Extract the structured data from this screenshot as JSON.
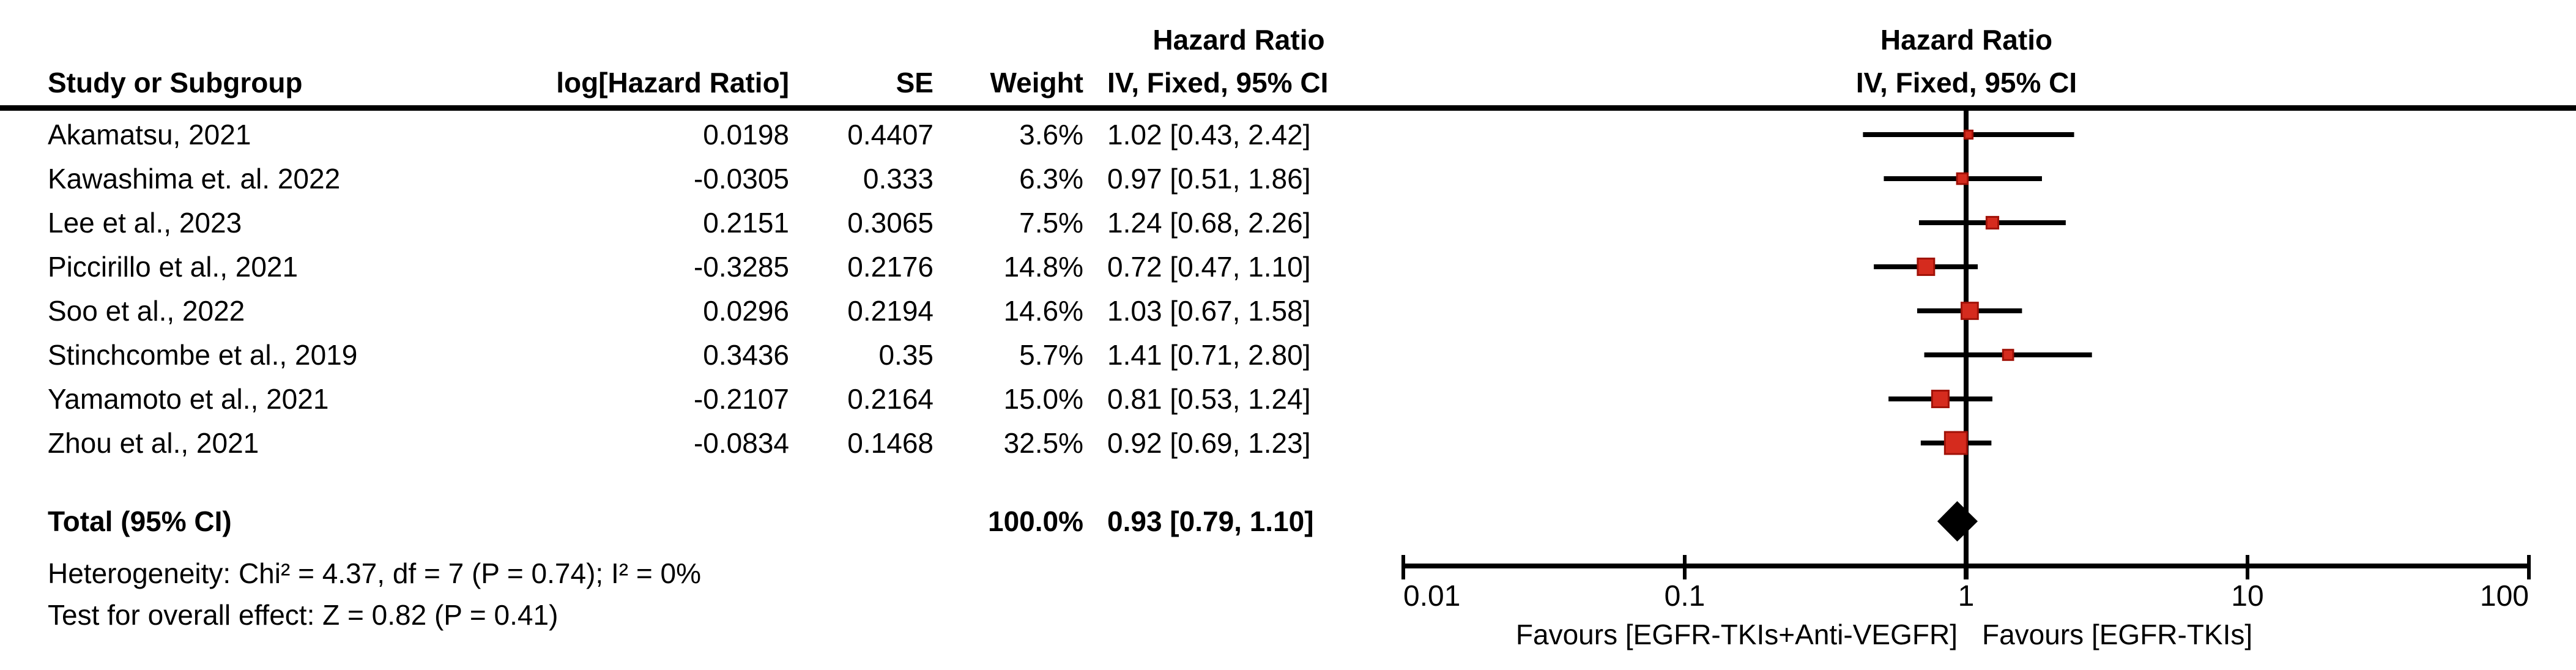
{
  "table": {
    "header_top": {
      "hazard_ratio": "Hazard Ratio"
    },
    "columns": {
      "study": "Study or Subgroup",
      "log_hr": "log[Hazard Ratio]",
      "se": "SE",
      "weight": "Weight",
      "ci": "IV, Fixed, 95% CI"
    },
    "rows": [
      {
        "study": "Akamatsu, 2021",
        "log_hr": "0.0198",
        "se": "0.4407",
        "weight": "3.6%",
        "ci": "1.02 [0.43, 2.42]"
      },
      {
        "study": "Kawashima et. al. 2022",
        "log_hr": "-0.0305",
        "se": "0.333",
        "weight": "6.3%",
        "ci": "0.97 [0.51, 1.86]"
      },
      {
        "study": "Lee et al., 2023",
        "log_hr": "0.2151",
        "se": "0.3065",
        "weight": "7.5%",
        "ci": "1.24 [0.68, 2.26]"
      },
      {
        "study": "Piccirillo et al., 2021",
        "log_hr": "-0.3285",
        "se": "0.2176",
        "weight": "14.8%",
        "ci": "0.72 [0.47, 1.10]"
      },
      {
        "study": "Soo et al., 2022",
        "log_hr": "0.0296",
        "se": "0.2194",
        "weight": "14.6%",
        "ci": "1.03 [0.67, 1.58]"
      },
      {
        "study": "Stinchcombe et al., 2019",
        "log_hr": "0.3436",
        "se": "0.35",
        "weight": "5.7%",
        "ci": "1.41 [0.71, 2.80]"
      },
      {
        "study": "Yamamoto et al., 2021",
        "log_hr": "-0.2107",
        "se": "0.2164",
        "weight": "15.0%",
        "ci": "0.81 [0.53, 1.24]"
      },
      {
        "study": "Zhou et al., 2021",
        "log_hr": "-0.0834",
        "se": "0.1468",
        "weight": "32.5%",
        "ci": "0.92 [0.69, 1.23]"
      }
    ],
    "total": {
      "label": "Total (95% CI)",
      "weight": "100.0%",
      "ci": "0.93 [0.79, 1.10]"
    },
    "heterogeneity": "Heterogeneity: Chi² = 4.37, df = 7 (P = 0.74); I² = 0%",
    "overall_effect": "Test for overall effect: Z = 0.82 (P = 0.41)"
  },
  "plot": {
    "header_line1": "Hazard Ratio",
    "header_line2": "IV, Fixed, 95% CI",
    "favours_left": "Favours [EGFR-TKIs+Anti-VEGFR]",
    "favours_right": "Favours [EGFR-TKIs]"
  },
  "chart_data": {
    "type": "forest",
    "x_scale": "log10",
    "x_range": [
      0.01,
      100
    ],
    "null_line": 1,
    "axis_ticks": [
      0.01,
      0.1,
      1,
      10,
      100
    ],
    "axis_tick_labels": [
      "0.01",
      "0.1",
      "1",
      "10",
      "100"
    ],
    "effect_measure": "Hazard Ratio, IV, Fixed, 95% CI",
    "studies": [
      {
        "name": "Akamatsu, 2021",
        "hr": 1.02,
        "lo": 0.43,
        "hi": 2.42,
        "weight_pct": 3.6
      },
      {
        "name": "Kawashima et. al. 2022",
        "hr": 0.97,
        "lo": 0.51,
        "hi": 1.86,
        "weight_pct": 6.3
      },
      {
        "name": "Lee et al., 2023",
        "hr": 1.24,
        "lo": 0.68,
        "hi": 2.26,
        "weight_pct": 7.5
      },
      {
        "name": "Piccirillo et al., 2021",
        "hr": 0.72,
        "lo": 0.47,
        "hi": 1.1,
        "weight_pct": 14.8
      },
      {
        "name": "Soo et al., 2022",
        "hr": 1.03,
        "lo": 0.67,
        "hi": 1.58,
        "weight_pct": 14.6
      },
      {
        "name": "Stinchcombe et al., 2019",
        "hr": 1.41,
        "lo": 0.71,
        "hi": 2.8,
        "weight_pct": 5.7
      },
      {
        "name": "Yamamoto et al., 2021",
        "hr": 0.81,
        "lo": 0.53,
        "hi": 1.24,
        "weight_pct": 15.0
      },
      {
        "name": "Zhou et al., 2021",
        "hr": 0.92,
        "lo": 0.69,
        "hi": 1.23,
        "weight_pct": 32.5
      }
    ],
    "total": {
      "hr": 0.93,
      "lo": 0.79,
      "hi": 1.1,
      "weight_pct": 100.0
    },
    "marker_color": "#D52B1E",
    "marker_border_color": "#A01208",
    "diamond_color": "#000000",
    "line_color": "#000000"
  }
}
